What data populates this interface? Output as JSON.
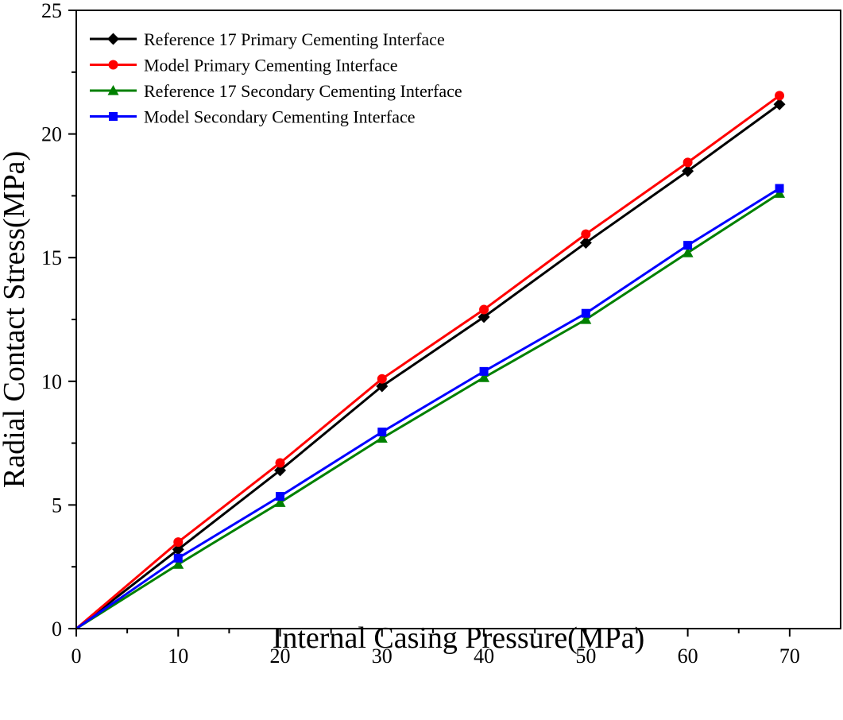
{
  "chart_data": {
    "type": "line",
    "title": "",
    "xlabel": "Internal Casing Pressure(MPa)",
    "ylabel": "Radial Contact Stress(MPa)",
    "xlim": [
      0,
      75
    ],
    "ylim": [
      0,
      25
    ],
    "xticks": [
      0,
      10,
      20,
      30,
      40,
      50,
      60,
      70
    ],
    "yticks": [
      0,
      5,
      10,
      15,
      20,
      25
    ],
    "x": [
      0,
      10,
      20,
      30,
      40,
      50,
      60,
      69
    ],
    "grid": false,
    "legend_position": "top-left",
    "series": [
      {
        "name": "Reference 17 Primary Cementing Interface",
        "color": "#000000",
        "marker": "diamond",
        "values": [
          0,
          3.2,
          6.4,
          9.8,
          12.6,
          15.6,
          18.5,
          21.2
        ]
      },
      {
        "name": "Model Primary Cementing Interface",
        "color": "#ff0000",
        "marker": "circle",
        "values": [
          0,
          3.5,
          6.7,
          10.1,
          12.9,
          15.95,
          18.85,
          21.55
        ]
      },
      {
        "name": "Reference 17 Secondary Cementing Interface",
        "color": "#008000",
        "marker": "triangle",
        "values": [
          0,
          2.6,
          5.1,
          7.7,
          10.15,
          12.5,
          15.2,
          17.6
        ]
      },
      {
        "name": "Model Secondary Cementing Interface",
        "color": "#0000ff",
        "marker": "square",
        "values": [
          0,
          2.85,
          5.35,
          7.95,
          10.4,
          12.75,
          15.5,
          17.8
        ]
      }
    ]
  }
}
